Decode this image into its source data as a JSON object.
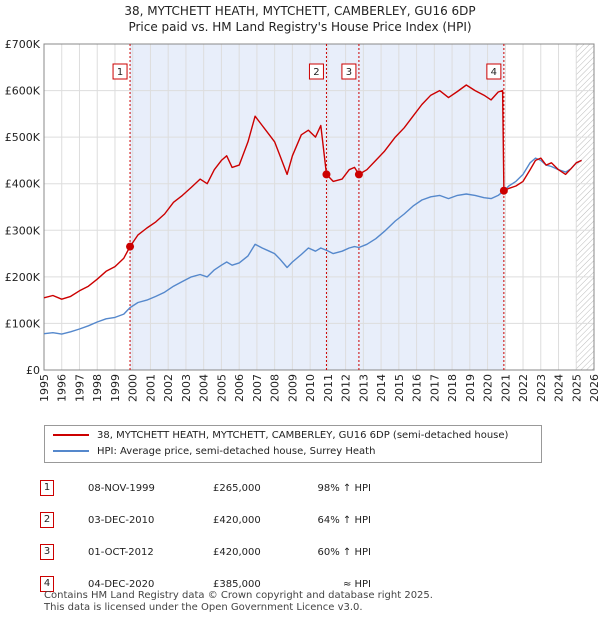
{
  "title_line1": "38, MYTCHETT HEATH, MYTCHETT, CAMBERLEY, GU16 6DP",
  "title_line2": "Price paid vs. HM Land Registry's House Price Index (HPI)",
  "colors": {
    "price": "#cc0000",
    "hpi": "#5588cc",
    "shade": "#e8eefa",
    "grid": "#dddddd"
  },
  "chart_data": {
    "type": "line",
    "title": "38, MYTCHETT HEATH, MYTCHETT, CAMBERLEY, GU16 6DP",
    "subtitle": "Price paid vs. HM Land Registry's House Price Index (HPI)",
    "xlabel": "",
    "ylabel": "",
    "xlim": [
      1995,
      2026
    ],
    "ylim": [
      0,
      700000
    ],
    "x_ticks": [
      "1995",
      "1996",
      "1997",
      "1998",
      "1999",
      "2000",
      "2001",
      "2002",
      "2003",
      "2004",
      "2005",
      "2006",
      "2007",
      "2008",
      "2009",
      "2010",
      "2011",
      "2012",
      "2013",
      "2014",
      "2015",
      "2016",
      "2017",
      "2018",
      "2019",
      "2020",
      "2021",
      "2022",
      "2023",
      "2024",
      "2025",
      "2026"
    ],
    "y_ticks": [
      {
        "v": 0,
        "label": "£0"
      },
      {
        "v": 100000,
        "label": "£100K"
      },
      {
        "v": 200000,
        "label": "£200K"
      },
      {
        "v": 300000,
        "label": "£300K"
      },
      {
        "v": 400000,
        "label": "£400K"
      },
      {
        "v": 500000,
        "label": "£500K"
      },
      {
        "v": 600000,
        "label": "£600K"
      },
      {
        "v": 700000,
        "label": "£700K"
      }
    ],
    "grid": true,
    "shaded_period": [
      1999.85,
      2020.92
    ],
    "hatched_after": 2025.0,
    "series": [
      {
        "name": "38, MYTCHETT HEATH, MYTCHETT, CAMBERLEY, GU16 6DP (semi-detached house)",
        "color": "#cc0000",
        "points": [
          [
            1995.0,
            155000
          ],
          [
            1995.5,
            160000
          ],
          [
            1996.0,
            152000
          ],
          [
            1996.5,
            158000
          ],
          [
            1997.0,
            170000
          ],
          [
            1997.5,
            180000
          ],
          [
            1998.0,
            195000
          ],
          [
            1998.5,
            212000
          ],
          [
            1999.0,
            222000
          ],
          [
            1999.5,
            240000
          ],
          [
            1999.85,
            265000
          ],
          [
            2000.3,
            290000
          ],
          [
            2000.8,
            305000
          ],
          [
            2001.3,
            318000
          ],
          [
            2001.8,
            335000
          ],
          [
            2002.3,
            360000
          ],
          [
            2002.8,
            375000
          ],
          [
            2003.3,
            392000
          ],
          [
            2003.8,
            410000
          ],
          [
            2004.2,
            400000
          ],
          [
            2004.6,
            430000
          ],
          [
            2005.0,
            450000
          ],
          [
            2005.3,
            460000
          ],
          [
            2005.6,
            435000
          ],
          [
            2006.0,
            440000
          ],
          [
            2006.5,
            490000
          ],
          [
            2006.9,
            545000
          ],
          [
            2007.3,
            525000
          ],
          [
            2007.7,
            505000
          ],
          [
            2008.0,
            490000
          ],
          [
            2008.3,
            460000
          ],
          [
            2008.7,
            420000
          ],
          [
            2009.0,
            460000
          ],
          [
            2009.5,
            505000
          ],
          [
            2009.9,
            515000
          ],
          [
            2010.3,
            500000
          ],
          [
            2010.6,
            525000
          ],
          [
            2010.92,
            420000
          ],
          [
            2011.3,
            405000
          ],
          [
            2011.8,
            410000
          ],
          [
            2012.2,
            430000
          ],
          [
            2012.5,
            435000
          ],
          [
            2012.75,
            420000
          ],
          [
            2013.2,
            430000
          ],
          [
            2013.7,
            450000
          ],
          [
            2014.2,
            470000
          ],
          [
            2014.8,
            500000
          ],
          [
            2015.3,
            520000
          ],
          [
            2015.8,
            545000
          ],
          [
            2016.3,
            570000
          ],
          [
            2016.8,
            590000
          ],
          [
            2017.3,
            600000
          ],
          [
            2017.8,
            585000
          ],
          [
            2018.3,
            598000
          ],
          [
            2018.8,
            612000
          ],
          [
            2019.3,
            600000
          ],
          [
            2019.8,
            590000
          ],
          [
            2020.2,
            580000
          ],
          [
            2020.6,
            597000
          ],
          [
            2020.85,
            600000
          ],
          [
            2020.92,
            385000
          ],
          [
            2021.2,
            390000
          ],
          [
            2021.6,
            395000
          ],
          [
            2022.0,
            405000
          ],
          [
            2022.4,
            430000
          ],
          [
            2022.7,
            450000
          ],
          [
            2023.0,
            455000
          ],
          [
            2023.3,
            440000
          ],
          [
            2023.6,
            445000
          ],
          [
            2024.0,
            430000
          ],
          [
            2024.4,
            420000
          ],
          [
            2024.7,
            432000
          ],
          [
            2025.0,
            445000
          ],
          [
            2025.3,
            450000
          ]
        ]
      },
      {
        "name": "HPI: Average price, semi-detached house, Surrey Heath",
        "color": "#5588cc",
        "points": [
          [
            1995.0,
            78000
          ],
          [
            1995.5,
            80000
          ],
          [
            1996.0,
            77000
          ],
          [
            1996.5,
            82000
          ],
          [
            1997.0,
            88000
          ],
          [
            1997.5,
            95000
          ],
          [
            1998.0,
            103000
          ],
          [
            1998.5,
            110000
          ],
          [
            1999.0,
            113000
          ],
          [
            1999.5,
            120000
          ],
          [
            1999.85,
            134000
          ],
          [
            2000.3,
            145000
          ],
          [
            2000.8,
            150000
          ],
          [
            2001.3,
            158000
          ],
          [
            2001.8,
            167000
          ],
          [
            2002.3,
            180000
          ],
          [
            2002.8,
            190000
          ],
          [
            2003.3,
            200000
          ],
          [
            2003.8,
            205000
          ],
          [
            2004.2,
            200000
          ],
          [
            2004.6,
            215000
          ],
          [
            2005.0,
            225000
          ],
          [
            2005.3,
            232000
          ],
          [
            2005.6,
            225000
          ],
          [
            2006.0,
            230000
          ],
          [
            2006.5,
            245000
          ],
          [
            2006.9,
            270000
          ],
          [
            2007.3,
            262000
          ],
          [
            2007.7,
            255000
          ],
          [
            2008.0,
            250000
          ],
          [
            2008.3,
            238000
          ],
          [
            2008.7,
            220000
          ],
          [
            2009.0,
            232000
          ],
          [
            2009.5,
            248000
          ],
          [
            2009.9,
            262000
          ],
          [
            2010.3,
            255000
          ],
          [
            2010.6,
            262000
          ],
          [
            2010.92,
            257000
          ],
          [
            2011.3,
            250000
          ],
          [
            2011.8,
            255000
          ],
          [
            2012.2,
            262000
          ],
          [
            2012.5,
            265000
          ],
          [
            2012.75,
            263000
          ],
          [
            2013.2,
            270000
          ],
          [
            2013.7,
            282000
          ],
          [
            2014.2,
            298000
          ],
          [
            2014.8,
            320000
          ],
          [
            2015.3,
            335000
          ],
          [
            2015.8,
            352000
          ],
          [
            2016.3,
            365000
          ],
          [
            2016.8,
            372000
          ],
          [
            2017.3,
            375000
          ],
          [
            2017.8,
            368000
          ],
          [
            2018.3,
            375000
          ],
          [
            2018.8,
            378000
          ],
          [
            2019.3,
            375000
          ],
          [
            2019.8,
            370000
          ],
          [
            2020.2,
            368000
          ],
          [
            2020.6,
            375000
          ],
          [
            2020.92,
            385000
          ],
          [
            2021.2,
            395000
          ],
          [
            2021.6,
            405000
          ],
          [
            2022.0,
            420000
          ],
          [
            2022.4,
            445000
          ],
          [
            2022.7,
            455000
          ],
          [
            2023.0,
            450000
          ],
          [
            2023.3,
            440000
          ],
          [
            2023.6,
            437000
          ],
          [
            2024.0,
            430000
          ],
          [
            2024.4,
            425000
          ],
          [
            2024.7,
            432000
          ],
          [
            2025.0,
            445000
          ],
          [
            2025.3,
            450000
          ]
        ]
      }
    ],
    "transactions": [
      {
        "n": "1",
        "x": 1999.85,
        "y": 265000
      },
      {
        "n": "2",
        "x": 2010.92,
        "y": 420000
      },
      {
        "n": "3",
        "x": 2012.75,
        "y": 420000
      },
      {
        "n": "4",
        "x": 2020.92,
        "y": 385000
      }
    ]
  },
  "legend": {
    "price_label": "38, MYTCHETT HEATH, MYTCHETT, CAMBERLEY, GU16 6DP (semi-detached house)",
    "hpi_label": "HPI: Average price, semi-detached house, Surrey Heath"
  },
  "transactions_table": [
    {
      "n": "1",
      "date": "08-NOV-1999",
      "price": "£265,000",
      "hpi": "98% ↑ HPI"
    },
    {
      "n": "2",
      "date": "03-DEC-2010",
      "price": "£420,000",
      "hpi": "64% ↑ HPI"
    },
    {
      "n": "3",
      "date": "01-OCT-2012",
      "price": "£420,000",
      "hpi": "60% ↑ HPI"
    },
    {
      "n": "4",
      "date": "04-DEC-2020",
      "price": "£385,000",
      "hpi": "≈ HPI"
    }
  ],
  "footer": {
    "line1": "Contains HM Land Registry data © Crown copyright and database right 2025.",
    "line2": "This data is licensed under the Open Government Licence v3.0."
  }
}
